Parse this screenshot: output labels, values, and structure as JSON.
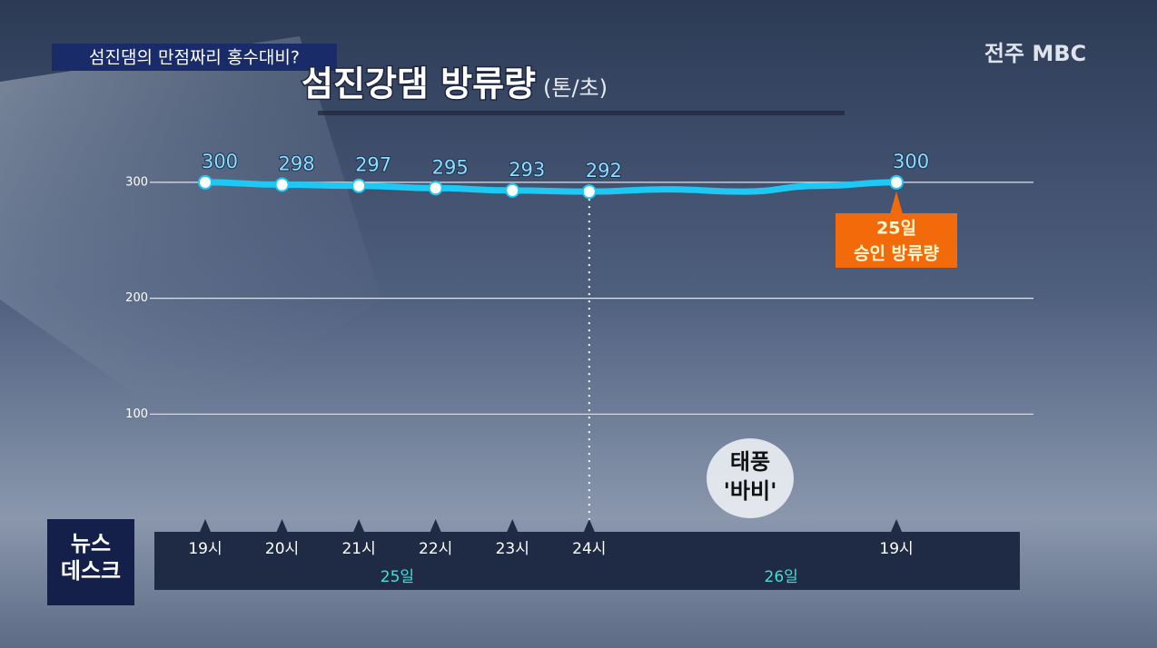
{
  "header": {
    "caption": "섬진댐의 만점짜리 홍수대비?",
    "broadcaster": "전주 MBC",
    "program": [
      "뉴스",
      "데스크"
    ]
  },
  "chart_data": {
    "type": "line",
    "title": "섬진강댐 방류량",
    "unit": "(톤/초)",
    "categories": [
      "19시",
      "20시",
      "21시",
      "22시",
      "23시",
      "24시",
      null,
      null,
      null,
      "19시"
    ],
    "x_groups": [
      "25일",
      "26일"
    ],
    "series": [
      {
        "name": "방류량",
        "color": "#1ec8f4",
        "values": [
          300,
          298,
          297,
          295,
          293,
          292,
          294,
          292,
          297,
          300
        ]
      }
    ],
    "ylim": [
      0,
      330
    ],
    "yticks": [
      100,
      200,
      300
    ],
    "grid": true,
    "annotation": [
      "25일",
      "승인 방류량"
    ],
    "note": [
      "태풍",
      "'바비'"
    ]
  }
}
